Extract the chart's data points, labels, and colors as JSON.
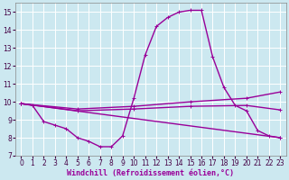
{
  "xlabel": "Windchill (Refroidissement éolien,°C)",
  "bg_color": "#cce8f0",
  "grid_color": "#ffffff",
  "line_color": "#990099",
  "xlim_min": -0.5,
  "xlim_max": 23.5,
  "ylim_min": 7.0,
  "ylim_max": 15.5,
  "yticks": [
    7,
    8,
    9,
    10,
    11,
    12,
    13,
    14,
    15
  ],
  "xticks": [
    0,
    1,
    2,
    3,
    4,
    5,
    6,
    7,
    8,
    9,
    10,
    11,
    12,
    13,
    14,
    15,
    16,
    17,
    18,
    19,
    20,
    21,
    22,
    23
  ],
  "line1_x": [
    0,
    1,
    2,
    3,
    4,
    5,
    6,
    7,
    8,
    9,
    10,
    11,
    12,
    13,
    14,
    15,
    16,
    17,
    18,
    19,
    20,
    21,
    22,
    23
  ],
  "line1_y": [
    9.9,
    9.8,
    8.9,
    8.7,
    8.5,
    8.0,
    7.8,
    7.5,
    7.5,
    8.1,
    10.2,
    12.6,
    14.2,
    14.7,
    15.0,
    15.1,
    15.1,
    12.5,
    10.8,
    9.8,
    9.5,
    8.4,
    8.1,
    8.0
  ],
  "line2_x": [
    0,
    5,
    10,
    15,
    20,
    23
  ],
  "line2_y": [
    9.9,
    9.6,
    9.75,
    10.0,
    10.2,
    10.55
  ],
  "line3_x": [
    0,
    5,
    10,
    15,
    20,
    23
  ],
  "line3_y": [
    9.9,
    9.5,
    9.6,
    9.75,
    9.8,
    9.55
  ],
  "line4_x": [
    0,
    23
  ],
  "line4_y": [
    9.9,
    8.0
  ],
  "marker_size": 3.5,
  "linewidth": 1.0,
  "tick_fontsize": 5.5,
  "label_fontsize": 6.0
}
